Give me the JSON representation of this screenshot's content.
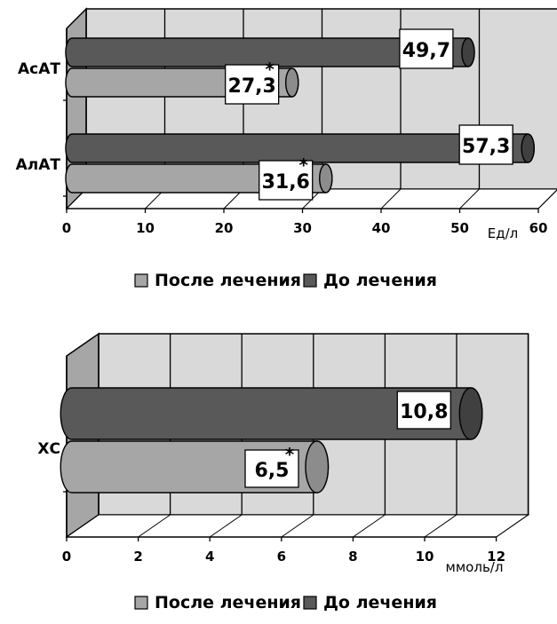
{
  "chart_data": [
    {
      "type": "bar",
      "orientation": "horizontal",
      "categories": [
        "АсАТ",
        "АлАТ"
      ],
      "series": [
        {
          "name": "После лечения",
          "values": [
            27.3,
            31.6
          ],
          "labels": [
            "27,3",
            "31,6"
          ],
          "asterisk": true,
          "color": "#a6a6a6"
        },
        {
          "name": "До лечения",
          "values": [
            49.7,
            57.3
          ],
          "labels": [
            "49,7",
            "57,3"
          ],
          "asterisk": false,
          "color": "#595959"
        }
      ],
      "xticks": [
        "0",
        "10",
        "20",
        "30",
        "40",
        "50",
        "60"
      ],
      "xlim": [
        0,
        60
      ],
      "xlabel": "Ед/л",
      "grid": true,
      "legend_position": "bottom",
      "legend": [
        "После лечения",
        "До лечения"
      ]
    },
    {
      "type": "bar",
      "orientation": "horizontal",
      "categories": [
        "ХС"
      ],
      "series": [
        {
          "name": "После лечения",
          "values": [
            6.5
          ],
          "labels": [
            "6,5"
          ],
          "asterisk": true,
          "color": "#a6a6a6"
        },
        {
          "name": "До лечения",
          "values": [
            10.8
          ],
          "labels": [
            "10,8"
          ],
          "asterisk": false,
          "color": "#595959"
        }
      ],
      "xticks": [
        "0",
        "2",
        "4",
        "6",
        "8",
        "10",
        "12"
      ],
      "xlim": [
        0,
        12
      ],
      "xlabel": "ммоль/л",
      "grid": true,
      "legend_position": "bottom",
      "legend": [
        "После лечения",
        "До лечения"
      ]
    }
  ],
  "asterisk_symbol": "*",
  "colors": {
    "wall": "#d9d9d9",
    "side_wall": "#a6a6a6",
    "after": "#a6a6a6",
    "before": "#595959",
    "grid": "#000000"
  }
}
